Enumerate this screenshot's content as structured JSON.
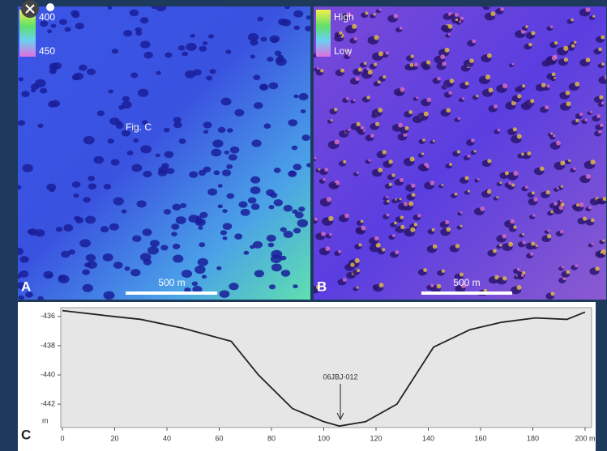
{
  "panels": {
    "a": {
      "label": "A",
      "legend": {
        "max": "400",
        "min": "450"
      },
      "annotation": "Fig. C",
      "scale": "500 m"
    },
    "b": {
      "label": "B",
      "legend": {
        "max": "High",
        "min": "Low"
      },
      "scale": "500 m"
    }
  },
  "chart_data": {
    "type": "line",
    "label": "C",
    "y_unit": "m",
    "annotation": "06JBJ-012",
    "x": [
      0,
      19.5,
      30,
      46,
      64.6,
      75,
      88,
      100,
      106,
      116,
      128,
      142,
      156,
      168,
      181,
      193,
      200
    ],
    "series": [
      {
        "color": "#222222",
        "values": [
          -435.6,
          -436,
          -436.2,
          -436.8,
          -437.7,
          -440.0,
          -442.3,
          -443.2,
          -443.5,
          -443.2,
          -442,
          -438.1,
          -436.9,
          -436.4,
          -436.1,
          -436.2,
          -435.7
        ]
      }
    ],
    "xlim": [
      0,
      200
    ],
    "xticks": [
      0,
      20,
      40,
      60,
      80,
      100,
      120,
      140,
      160,
      180,
      {
        "value": 200,
        "label": "200 m"
      }
    ],
    "ylim": [
      -443.6,
      -435.4
    ],
    "yticks": [
      -436,
      -438,
      -440,
      -442
    ]
  }
}
